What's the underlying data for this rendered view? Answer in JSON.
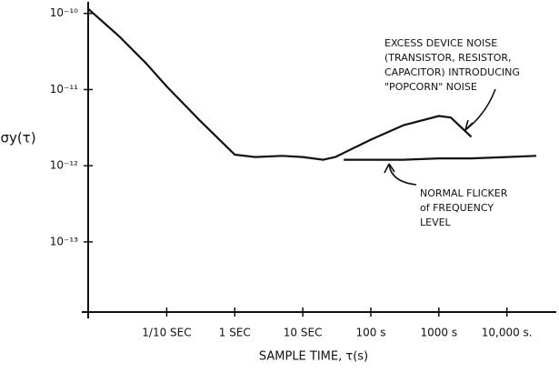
{
  "chart_data": {
    "type": "line",
    "y_label": "σy(τ)",
    "x_label": "SAMPLE TIME, τ(s)",
    "x_log": true,
    "y_log": true,
    "grid": false,
    "color": "#111111",
    "xlim": [
      0.007,
      50000
    ],
    "ylim": [
      1.2e-14,
      1.5e-10
    ],
    "xticks": [
      {
        "value": 0.1,
        "label": "1/10 SEC"
      },
      {
        "value": 1,
        "label": "1 SEC"
      },
      {
        "value": 10,
        "label": "10 SEC"
      },
      {
        "value": 100,
        "label": "100 s"
      },
      {
        "value": 1000,
        "label": "1000 s"
      },
      {
        "value": 10000,
        "label": "10,000 s."
      }
    ],
    "yticks": [
      {
        "value": 1e-10,
        "label": "10⁻¹⁰"
      },
      {
        "value": 1e-11,
        "label": "10⁻¹¹"
      },
      {
        "value": 1e-12,
        "label": "10⁻¹²"
      },
      {
        "value": 1e-13,
        "label": "10⁻¹³"
      }
    ],
    "series": [
      {
        "x": [
          0.007,
          0.02,
          0.05,
          0.1,
          0.3,
          1,
          2,
          5,
          10,
          20,
          30,
          100,
          300,
          1000,
          1500,
          3000
        ],
        "values": [
          1.15e-10,
          5e-11,
          2.2e-11,
          1.1e-11,
          4e-12,
          1.4e-12,
          1.3e-12,
          1.35e-12,
          1.3e-12,
          1.2e-12,
          1.3e-12,
          2.2e-12,
          3.4e-12,
          4.5e-12,
          4.3e-12,
          2.4e-12
        ]
      },
      {
        "x": [
          40,
          100,
          300,
          1000,
          3000,
          10000,
          27000
        ],
        "values": [
          1.2e-12,
          1.2e-12,
          1.2e-12,
          1.25e-12,
          1.25e-12,
          1.3e-12,
          1.35e-12
        ]
      }
    ],
    "annotations": [
      {
        "lines": [
          "EXCESS DEVICE NOISE",
          "(TRANSISTOR, RESISTOR,",
          "CAPACITOR) INTRODUCING",
          "\"POPCORN\" NOISE"
        ]
      },
      {
        "lines": [
          "NORMAL FLICKER",
          "of FREQUENCY",
          "LEVEL"
        ]
      }
    ]
  }
}
